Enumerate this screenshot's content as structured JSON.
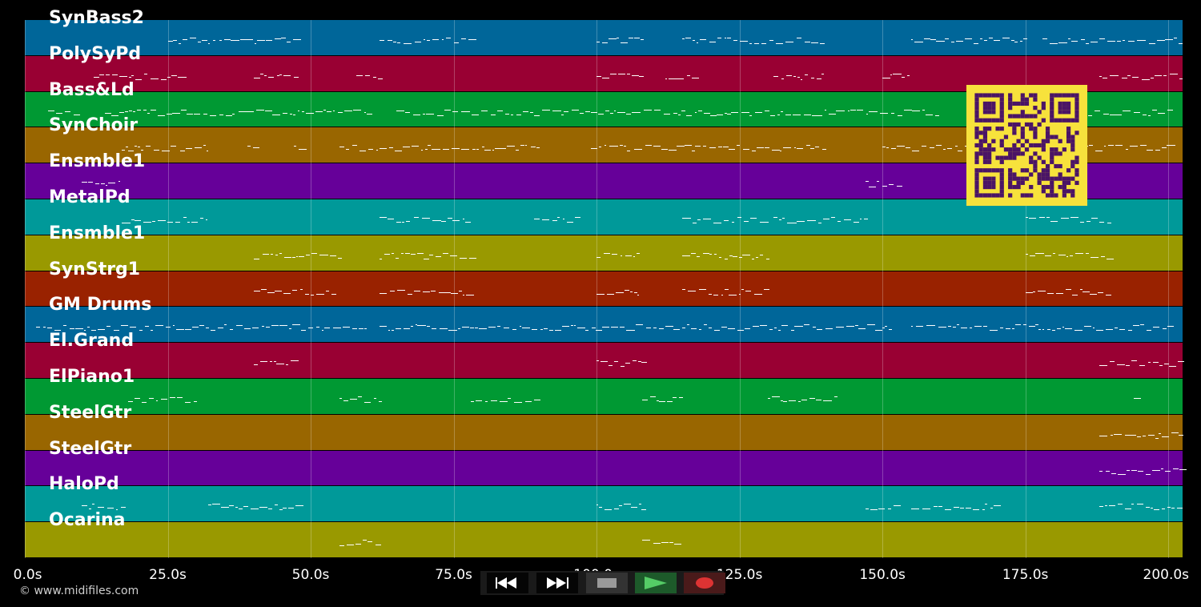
{
  "tracks": [
    {
      "name": "SynBass2",
      "color": "#006699"
    },
    {
      "name": "PolySyPd",
      "color": "#990033"
    },
    {
      "name": "Bass&Ld",
      "color": "#009933"
    },
    {
      "name": "SynChoir",
      "color": "#996600"
    },
    {
      "name": "Ensmble1",
      "color": "#660099"
    },
    {
      "name": "MetalPd",
      "color": "#009999"
    },
    {
      "name": "Ensmble1",
      "color": "#999900"
    },
    {
      "name": "SynStrg1",
      "color": "#992200"
    },
    {
      "name": "GM Drums",
      "color": "#006699"
    },
    {
      "name": "El.Grand",
      "color": "#990033"
    },
    {
      "name": "ElPiano1",
      "color": "#009933"
    },
    {
      "name": "SteelGtr",
      "color": "#996600"
    },
    {
      "name": "SteelGtr",
      "color": "#660099"
    },
    {
      "name": "HaloPd",
      "color": "#009999"
    },
    {
      "name": "Ocarina",
      "color": "#999900"
    }
  ],
  "timeline": {
    "max_seconds": 202.5,
    "ticks": [
      {
        "value": 0,
        "label": "0.0s"
      },
      {
        "value": 25,
        "label": "25.0s"
      },
      {
        "value": 50,
        "label": "50.0s"
      },
      {
        "value": 75,
        "label": "75.0s"
      },
      {
        "value": 100,
        "label": "100.0s"
      },
      {
        "value": 125,
        "label": "125.0s"
      },
      {
        "value": 150,
        "label": "150.0s"
      },
      {
        "value": 175,
        "label": "175.0s"
      },
      {
        "value": 200,
        "label": "200.0s"
      }
    ]
  },
  "footer": {
    "copyright": "© www.midifiles.com"
  },
  "transport": {
    "buttons": [
      {
        "name": "rewind",
        "icon": "rewind-icon"
      },
      {
        "name": "fast-forward",
        "icon": "fast-forward-icon"
      },
      {
        "name": "stop",
        "icon": "stop-icon"
      },
      {
        "name": "play",
        "icon": "play-icon"
      },
      {
        "name": "record",
        "icon": "record-icon"
      }
    ]
  },
  "qr_icon": "qr-code-icon"
}
